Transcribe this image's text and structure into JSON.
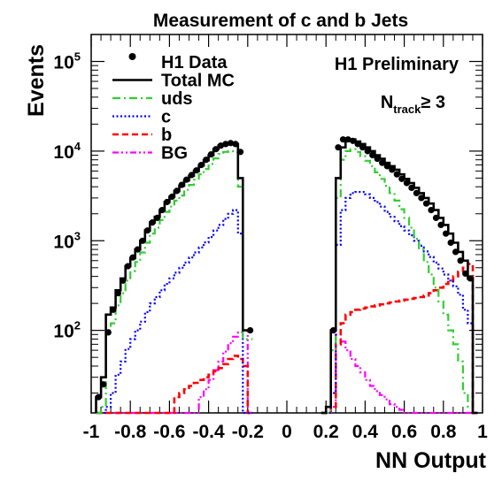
{
  "chart_data": {
    "type": "histogram",
    "title": "Measurement of c and b Jets",
    "xlabel": "NN Output",
    "ylabel": "Events",
    "x_ticks": [
      "-1",
      "-0.8",
      "-0.6",
      "-0.4",
      "-0.2",
      "0",
      "0.2",
      "0.4",
      "0.6",
      "0.8",
      "1"
    ],
    "x_tick_values": [
      -1,
      -0.8,
      -0.6,
      -0.4,
      -0.2,
      0,
      0.2,
      0.4,
      0.6,
      0.8,
      1
    ],
    "y_ticks": [
      {
        "base": "10",
        "exp": "2",
        "value": 100
      },
      {
        "base": "10",
        "exp": "3",
        "value": 1000
      },
      {
        "base": "10",
        "exp": "4",
        "value": 10000
      },
      {
        "base": "10",
        "exp": "5",
        "value": 100000
      }
    ],
    "xlim": [
      -1,
      1
    ],
    "ylim": [
      12,
      200000
    ],
    "yscale": "log",
    "annotation_main": "H1 Preliminary",
    "annotation_cut": {
      "prefix": "N",
      "sub": "track",
      "suffix": "≥ 3"
    },
    "bin_width": 0.025,
    "left_bins_start": -0.975,
    "right_bins_start": 0.175,
    "legend": [
      {
        "label": "H1 Data",
        "style": "markers",
        "color": "#000000"
      },
      {
        "label": "Total MC",
        "style": "solid",
        "color": "#000000"
      },
      {
        "label": "uds",
        "style": "dashdot",
        "color": "#33cc33"
      },
      {
        "label": "c",
        "style": "dotted",
        "color": "#0000ff"
      },
      {
        "label": "b",
        "style": "dashed",
        "color": "#ff0000"
      },
      {
        "label": "BG",
        "style": "dashdotdot",
        "color": "#ff00ff"
      }
    ],
    "series": [
      {
        "name": "H1 Data",
        "left": [
          18,
          25,
          95,
          170,
          260,
          360,
          520,
          650,
          800,
          1000,
          1300,
          1600,
          1800,
          2200,
          2700,
          3100,
          3600,
          4200,
          4800,
          5400,
          6100,
          7000,
          8000,
          9200,
          10500,
          11500,
          12000,
          12300,
          12000,
          9800,
          0,
          100
        ],
        "right": [
          0,
          0,
          100,
          11000,
          13500,
          13500,
          13000,
          12000,
          11000,
          10000,
          9000,
          8200,
          7400,
          6800,
          6200,
          5500,
          4900,
          4400,
          3900,
          3400,
          3000,
          2600,
          2200,
          1800,
          1500,
          1200,
          950,
          750,
          600,
          430,
          380,
          0
        ]
      },
      {
        "name": "Total MC",
        "left": [
          18,
          30,
          150,
          180,
          280,
          380,
          520,
          640,
          800,
          1000,
          1300,
          1600,
          1850,
          2200,
          2700,
          3100,
          3600,
          4100,
          4700,
          5300,
          6000,
          6900,
          7900,
          9000,
          10500,
          11500,
          12000,
          12300,
          12000,
          5000,
          100,
          100
        ],
        "right": [
          0,
          14,
          100,
          5000,
          11000,
          13500,
          13500,
          12800,
          12000,
          11000,
          10000,
          9000,
          8200,
          7400,
          6800,
          6200,
          5500,
          4900,
          4400,
          3900,
          3400,
          3000,
          2600,
          2200,
          1800,
          1500,
          1200,
          950,
          750,
          600,
          380,
          0
        ]
      },
      {
        "name": "uds",
        "left": [
          12,
          14,
          100,
          120,
          190,
          260,
          360,
          460,
          580,
          740,
          950,
          1200,
          1400,
          1700,
          2100,
          2400,
          2800,
          3200,
          3700,
          4200,
          4800,
          5500,
          6300,
          7200,
          8300,
          9300,
          9800,
          10000,
          9700,
          4000,
          80,
          80
        ],
        "right": [
          0,
          12,
          60,
          3000,
          8000,
          10000,
          10500,
          9800,
          8800,
          7800,
          6800,
          5800,
          4900,
          4100,
          3400,
          2800,
          2250,
          1800,
          1400,
          1050,
          800,
          580,
          420,
          300,
          210,
          150,
          100,
          70,
          45,
          20,
          14,
          0
        ]
      },
      {
        "name": "c",
        "left": [
          0,
          0,
          14,
          20,
          32,
          45,
          62,
          80,
          100,
          125,
          160,
          200,
          235,
          280,
          330,
          380,
          440,
          500,
          570,
          650,
          740,
          840,
          960,
          1100,
          1300,
          1500,
          1750,
          2000,
          2200,
          1200,
          0,
          0
        ],
        "right": [
          0,
          0,
          20,
          900,
          2200,
          3000,
          3400,
          3500,
          3500,
          3300,
          3000,
          2700,
          2400,
          2100,
          1850,
          1650,
          1450,
          1300,
          1150,
          1000,
          880,
          760,
          660,
          570,
          490,
          420,
          360,
          310,
          250,
          170,
          120,
          0
        ]
      },
      {
        "name": "b",
        "left": [
          0,
          0,
          0,
          0,
          0,
          0,
          0,
          0,
          0,
          0,
          0,
          0,
          0,
          0,
          0,
          0,
          18,
          20,
          22,
          24,
          26,
          28,
          30,
          32,
          35,
          38,
          42,
          48,
          52,
          48,
          40,
          0
        ],
        "right": [
          0,
          0,
          14,
          70,
          120,
          150,
          160,
          170,
          175,
          180,
          185,
          190,
          195,
          200,
          205,
          210,
          215,
          220,
          225,
          230,
          235,
          245,
          260,
          280,
          300,
          330,
          360,
          400,
          450,
          500,
          550,
          0
        ]
      },
      {
        "name": "BG",
        "left": [
          0,
          0,
          0,
          0,
          0,
          0,
          0,
          0,
          0,
          0,
          0,
          0,
          0,
          0,
          0,
          0,
          0,
          0,
          0,
          0,
          0,
          18,
          22,
          28,
          36,
          45,
          58,
          72,
          85,
          95,
          100,
          0
        ],
        "right": [
          0,
          0,
          14,
          90,
          75,
          60,
          48,
          40,
          34,
          28,
          24,
          21,
          19,
          17,
          15,
          14,
          13,
          12,
          12,
          0,
          0,
          0,
          0,
          0,
          0,
          0,
          0,
          0,
          0,
          0,
          0,
          0
        ]
      }
    ]
  }
}
